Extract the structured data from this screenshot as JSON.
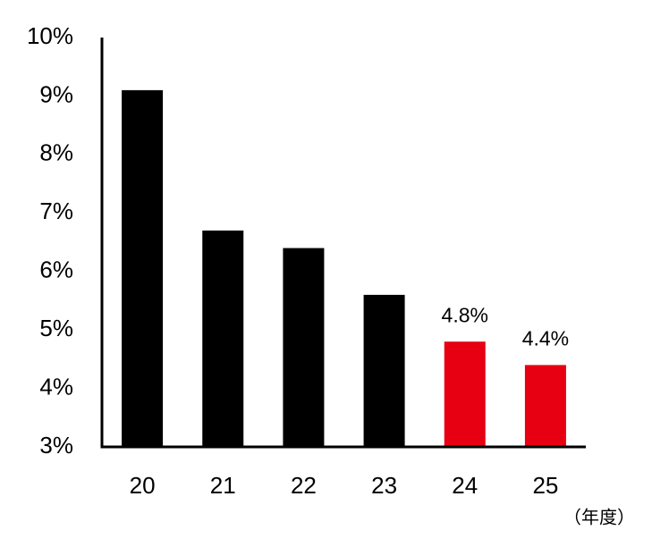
{
  "chart_data": {
    "type": "bar",
    "x_label": "（年度）",
    "categories": [
      "20",
      "21",
      "22",
      "23",
      "24",
      "25"
    ],
    "values": [
      9.1,
      6.7,
      6.4,
      5.6,
      4.8,
      4.4
    ],
    "value_labels": [
      null,
      null,
      null,
      null,
      "4.8%",
      "4.4%"
    ],
    "colors": [
      "#000000",
      "#000000",
      "#000000",
      "#000000",
      "#e60012",
      "#e60012"
    ],
    "ylim": [
      3,
      10
    ],
    "yticks": [
      {
        "value": 3,
        "label": "3%"
      },
      {
        "value": 4,
        "label": "4%"
      },
      {
        "value": 5,
        "label": "5%"
      },
      {
        "value": 6,
        "label": "6%"
      },
      {
        "value": 7,
        "label": "7%"
      },
      {
        "value": 8,
        "label": "8%"
      },
      {
        "value": 9,
        "label": "9%"
      },
      {
        "value": 10,
        "label": "10%"
      }
    ],
    "grid": false
  }
}
